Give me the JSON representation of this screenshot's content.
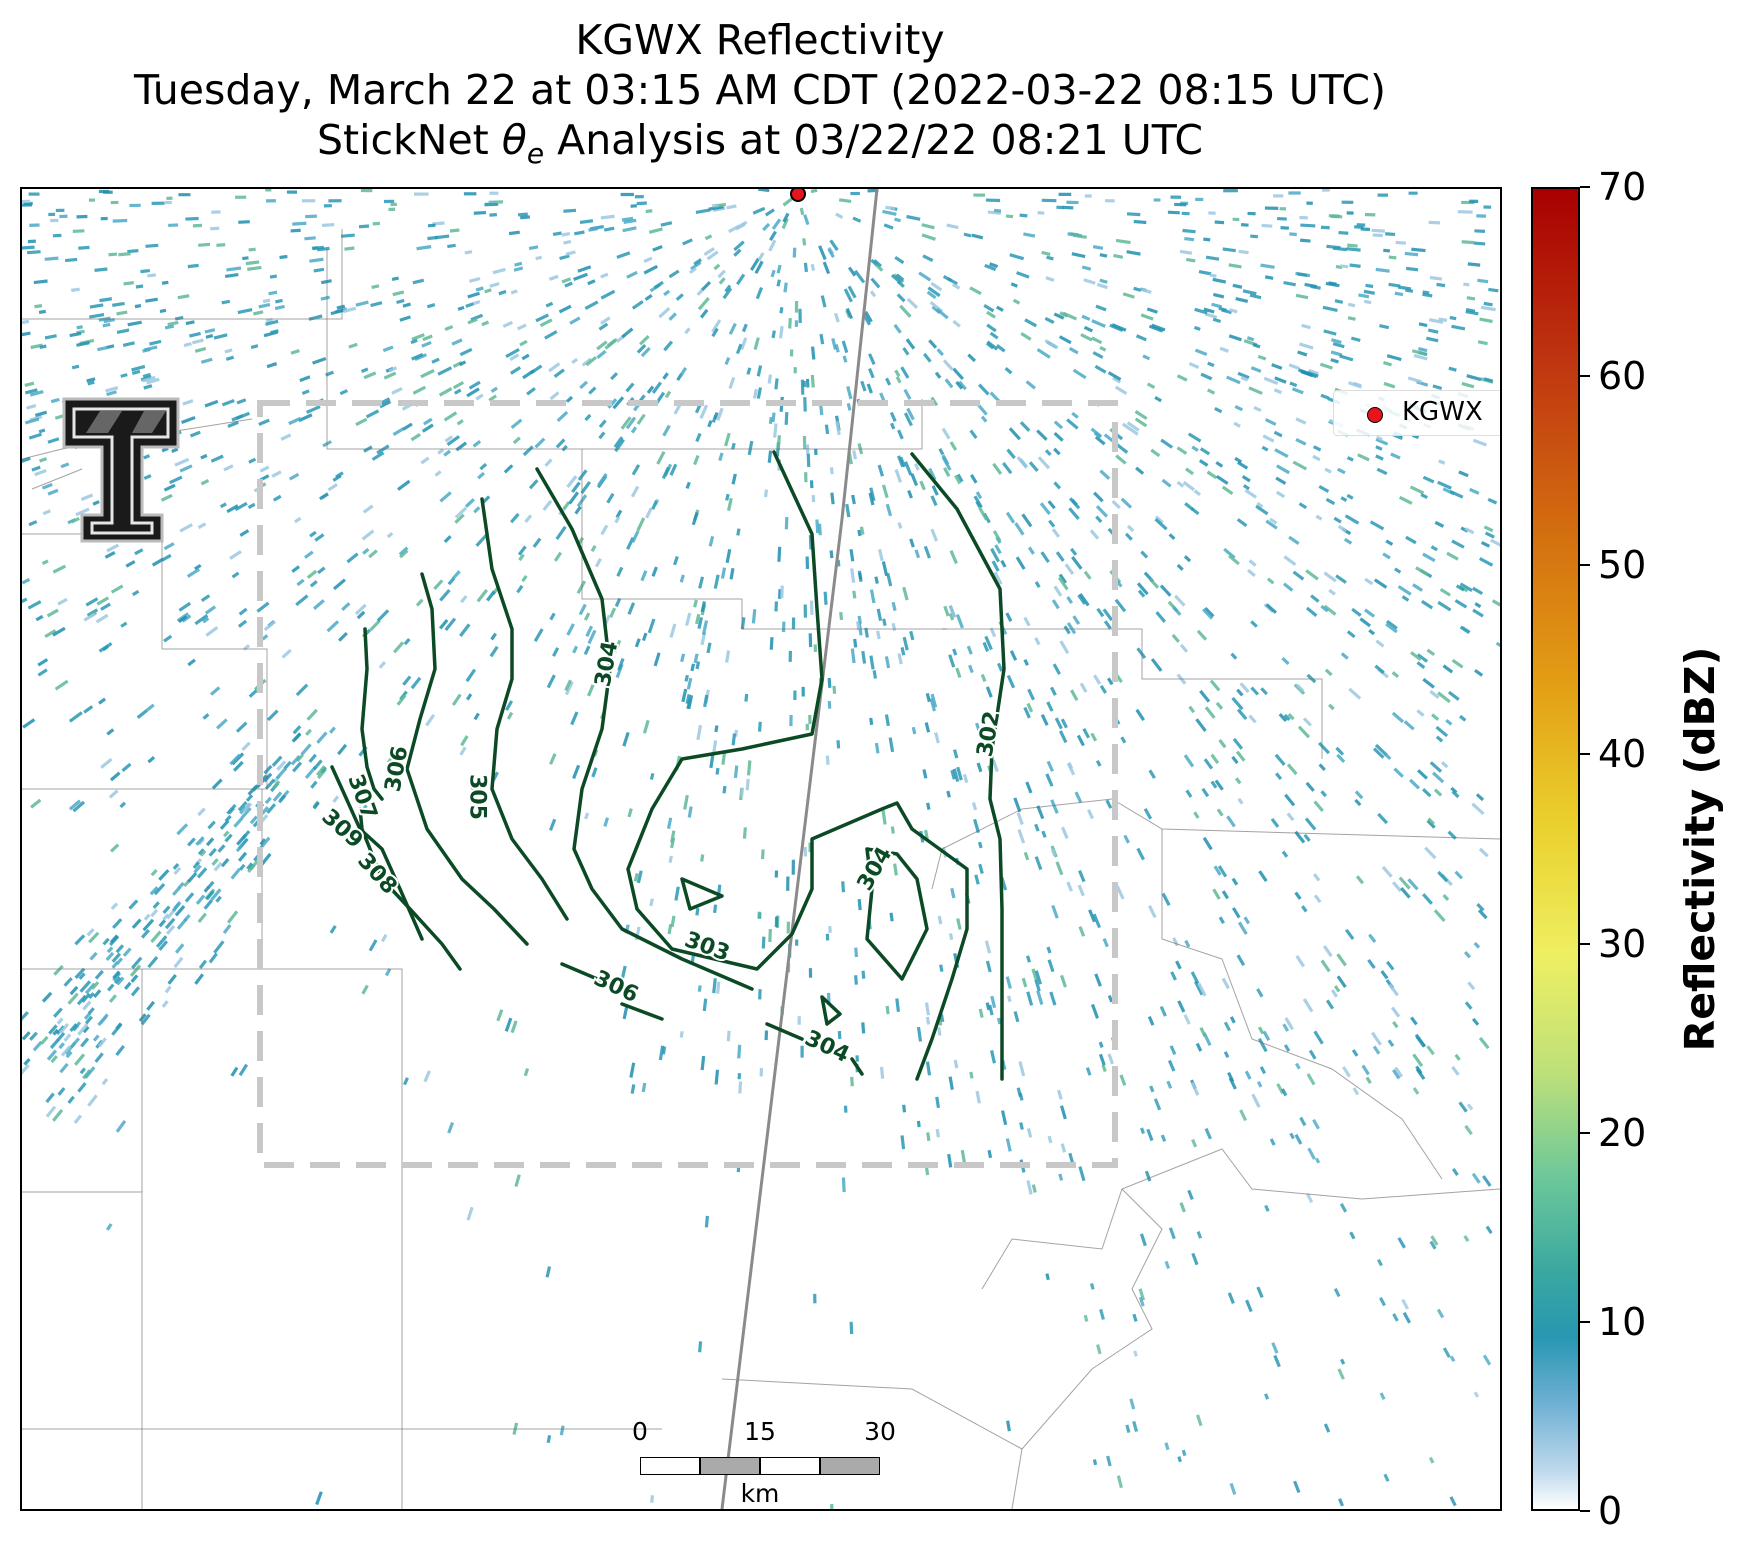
{
  "title": {
    "line1": "KGWX Reflectivity",
    "line2": "Tuesday, March 22 at 03:15 AM CDT (2022-03-22 08:15 UTC)",
    "line3": "StickNet θe Analysis at 03/22/22 08:21 UTC"
  },
  "legend": {
    "marker_label": "KGWX",
    "marker_color": "#e8141c"
  },
  "colorbar": {
    "label": "Reflectivity (dBZ)",
    "ticks": [
      "0",
      "10",
      "20",
      "30",
      "40",
      "50",
      "60",
      "70"
    ],
    "range": [
      0,
      70
    ]
  },
  "contours": {
    "color": "#0b4a25",
    "labels": [
      "309",
      "308",
      "307",
      "306",
      "305",
      "304",
      "303",
      "306",
      "304",
      "304",
      "302"
    ]
  },
  "scale_bar": {
    "ticks": [
      "0",
      "15",
      "30"
    ],
    "unit": "km"
  },
  "colors": {
    "echo_primary": "#2a98b5",
    "echo_light": "#9cc8e2",
    "echo_green": "#5fb896",
    "analysis_box": "#c8c8c8"
  }
}
